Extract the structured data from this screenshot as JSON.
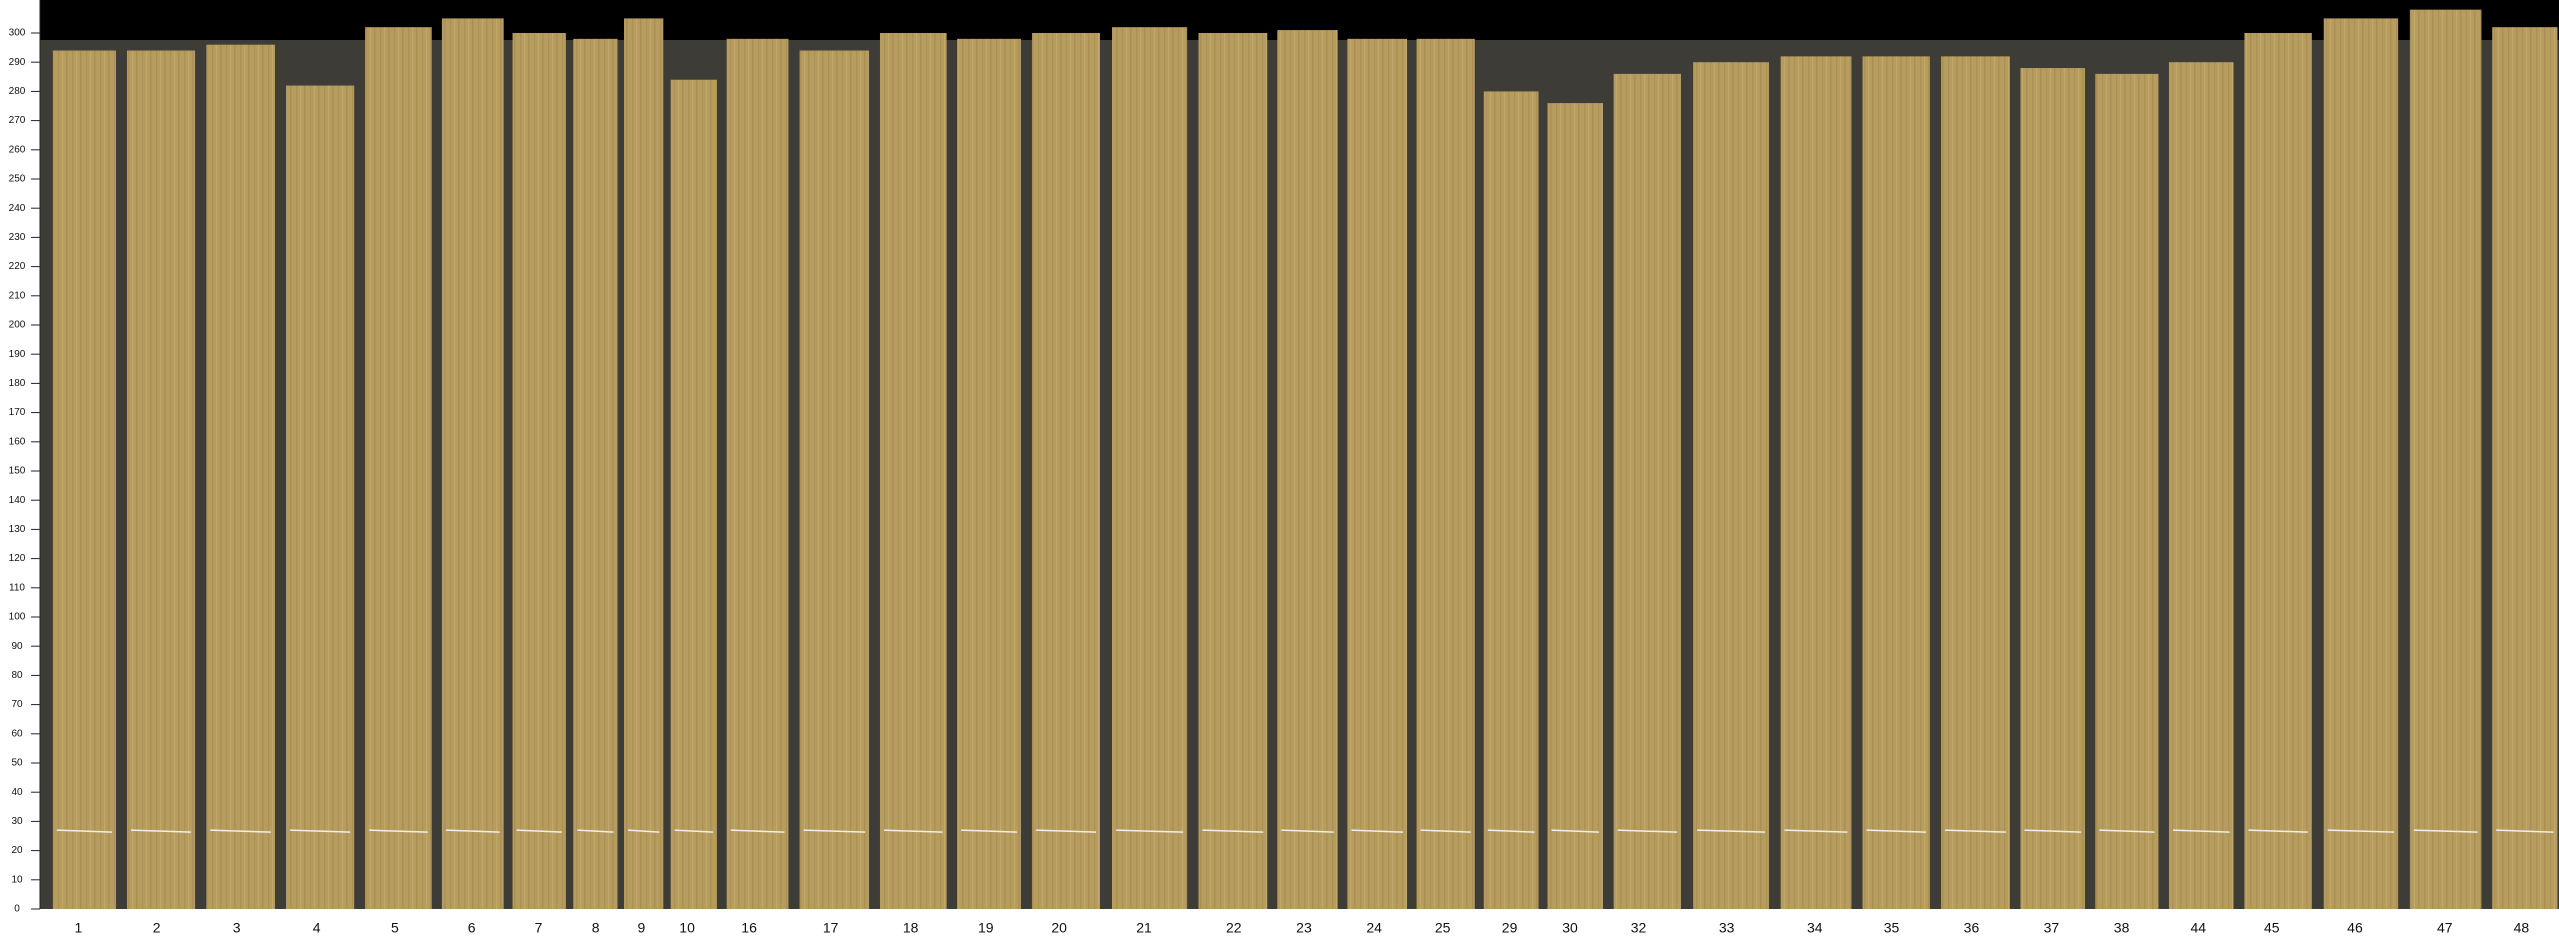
{
  "scale": {
    "range": [
      0,
      300
    ],
    "ticks": [
      0,
      10,
      20,
      30,
      40,
      50,
      60,
      70,
      80,
      90,
      100,
      110,
      120,
      130,
      140,
      150,
      160,
      170,
      180,
      190,
      200,
      210,
      220,
      230,
      240,
      250,
      260,
      270,
      280,
      290,
      300
    ]
  },
  "strips": [
    {
      "label": "1",
      "height": 294
    },
    {
      "label": "2",
      "height": 294
    },
    {
      "label": "3",
      "height": 296
    },
    {
      "label": "4",
      "height": 282
    },
    {
      "label": "5",
      "height": 302
    },
    {
      "label": "6",
      "height": 305
    },
    {
      "label": "7",
      "height": 300
    },
    {
      "label": "8",
      "height": 298
    },
    {
      "label": "9",
      "height": 305
    },
    {
      "label": "10",
      "height": 284
    },
    {
      "label": "16",
      "height": 298
    },
    {
      "label": "17",
      "height": 294
    },
    {
      "label": "18",
      "height": 300
    },
    {
      "label": "19",
      "height": 298
    },
    {
      "label": "20",
      "height": 300
    },
    {
      "label": "21",
      "height": 302
    },
    {
      "label": "22",
      "height": 300
    },
    {
      "label": "23",
      "height": 301
    },
    {
      "label": "24",
      "height": 298
    },
    {
      "label": "25",
      "height": 298
    },
    {
      "label": "29",
      "height": 280
    },
    {
      "label": "30",
      "height": 276
    },
    {
      "label": "32",
      "height": 286
    },
    {
      "label": "33",
      "height": 290
    },
    {
      "label": "34",
      "height": 292
    },
    {
      "label": "35",
      "height": 292
    },
    {
      "label": "36",
      "height": 292
    },
    {
      "label": "37",
      "height": 288
    },
    {
      "label": "38",
      "height": 286
    },
    {
      "label": "44",
      "height": 290
    },
    {
      "label": "45",
      "height": 300
    },
    {
      "label": "46",
      "height": 305
    },
    {
      "label": "47",
      "height": 308
    },
    {
      "label": "48",
      "height": 302
    }
  ]
}
